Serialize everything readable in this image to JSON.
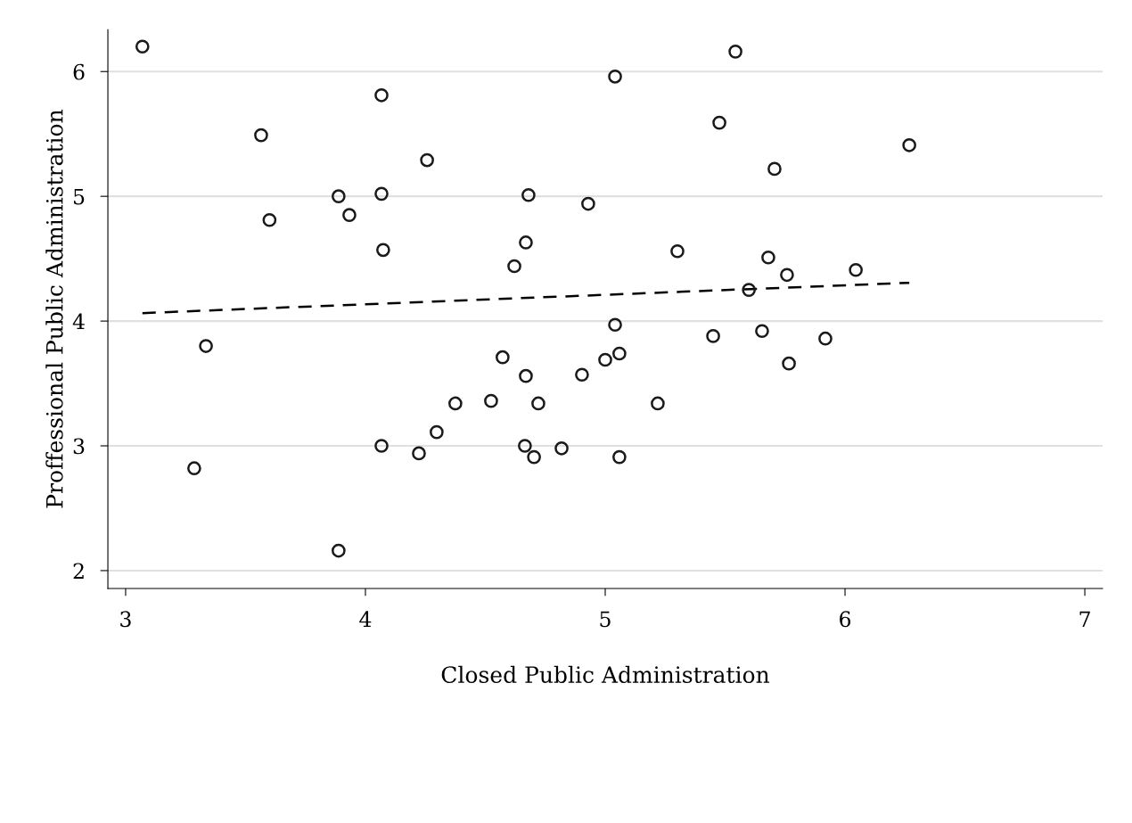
{
  "chart_data": {
    "type": "scatter",
    "xlabel": "Closed Public Administration",
    "ylabel": "Proffessional Public Administration",
    "xlim": [
      2.926,
      7.074
    ],
    "ylim": [
      1.857,
      6.336
    ],
    "xticks": [
      3,
      4,
      5,
      6,
      7
    ],
    "yticks": [
      2,
      3,
      4,
      5,
      6
    ],
    "grid": "y",
    "legend": false,
    "series": [
      {
        "color": "#1a1a1a",
        "marker": "circle",
        "x": [
          3.07,
          3.565,
          3.6,
          3.335,
          3.286,
          3.888,
          3.933,
          3.888,
          4.067,
          4.067,
          4.074,
          4.067,
          4.257,
          4.223,
          4.297,
          4.375,
          4.524,
          4.572,
          4.621,
          4.669,
          4.68,
          4.669,
          4.721,
          4.665,
          4.703,
          4.818,
          4.903,
          4.929,
          5.0,
          5.041,
          5.041,
          5.059,
          5.059,
          5.219,
          5.301,
          5.45,
          5.476,
          5.543,
          5.599,
          5.654,
          5.68,
          5.706,
          5.758,
          5.766,
          5.918,
          6.045,
          6.268
        ],
        "values": [
          6.2,
          5.49,
          4.81,
          3.8,
          2.82,
          5.0,
          4.85,
          2.16,
          5.81,
          5.02,
          4.57,
          3.0,
          5.29,
          2.94,
          3.11,
          3.34,
          3.36,
          3.71,
          4.44,
          4.63,
          5.01,
          3.56,
          3.34,
          3.0,
          2.91,
          2.98,
          3.57,
          4.94,
          3.69,
          5.96,
          3.97,
          3.74,
          2.91,
          3.34,
          4.56,
          3.88,
          5.59,
          6.16,
          4.25,
          3.92,
          4.51,
          5.22,
          4.37,
          3.66,
          3.86,
          4.41,
          5.41
        ]
      },
      {
        "type": "line",
        "color": "#000000",
        "line_style": "dashed",
        "marker": "none",
        "x": [
          3.07,
          6.268
        ],
        "values": [
          4.064,
          4.307
        ]
      }
    ]
  }
}
